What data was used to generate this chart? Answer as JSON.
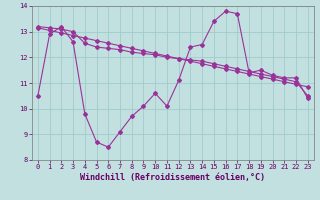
{
  "xlabel": "Windchill (Refroidissement éolien,°C)",
  "xlim": [
    -0.5,
    23.5
  ],
  "ylim": [
    8,
    14
  ],
  "yticks": [
    8,
    9,
    10,
    11,
    12,
    13,
    14
  ],
  "xticks": [
    0,
    1,
    2,
    3,
    4,
    5,
    6,
    7,
    8,
    9,
    10,
    11,
    12,
    13,
    14,
    15,
    16,
    17,
    18,
    19,
    20,
    21,
    22,
    23
  ],
  "bg_color": "#c2e0e0",
  "grid_color": "#a0cccc",
  "line_color": "#993399",
  "line1_y": [
    10.5,
    12.9,
    13.2,
    12.6,
    9.8,
    8.7,
    8.5,
    9.1,
    9.7,
    10.1,
    10.6,
    10.1,
    11.1,
    12.4,
    12.5,
    13.4,
    13.8,
    13.7,
    11.4,
    11.5,
    11.3,
    11.2,
    11.2,
    10.4
  ],
  "line2_y": [
    13.2,
    13.15,
    13.1,
    13.0,
    12.55,
    12.4,
    12.35,
    12.3,
    12.2,
    12.15,
    12.1,
    12.0,
    11.95,
    11.9,
    11.85,
    11.75,
    11.65,
    11.55,
    11.45,
    11.35,
    11.25,
    11.15,
    11.05,
    10.5
  ],
  "line3_y": [
    13.15,
    13.05,
    12.95,
    12.85,
    12.75,
    12.65,
    12.55,
    12.45,
    12.35,
    12.25,
    12.15,
    12.05,
    11.95,
    11.85,
    11.75,
    11.65,
    11.55,
    11.45,
    11.35,
    11.25,
    11.15,
    11.05,
    10.95,
    10.85
  ],
  "marker": "D",
  "markersize": 2.0,
  "linewidth": 0.8,
  "tick_fontsize": 5.0,
  "xlabel_fontsize": 6.0,
  "tick_color": "#660066",
  "spine_color": "#777777"
}
